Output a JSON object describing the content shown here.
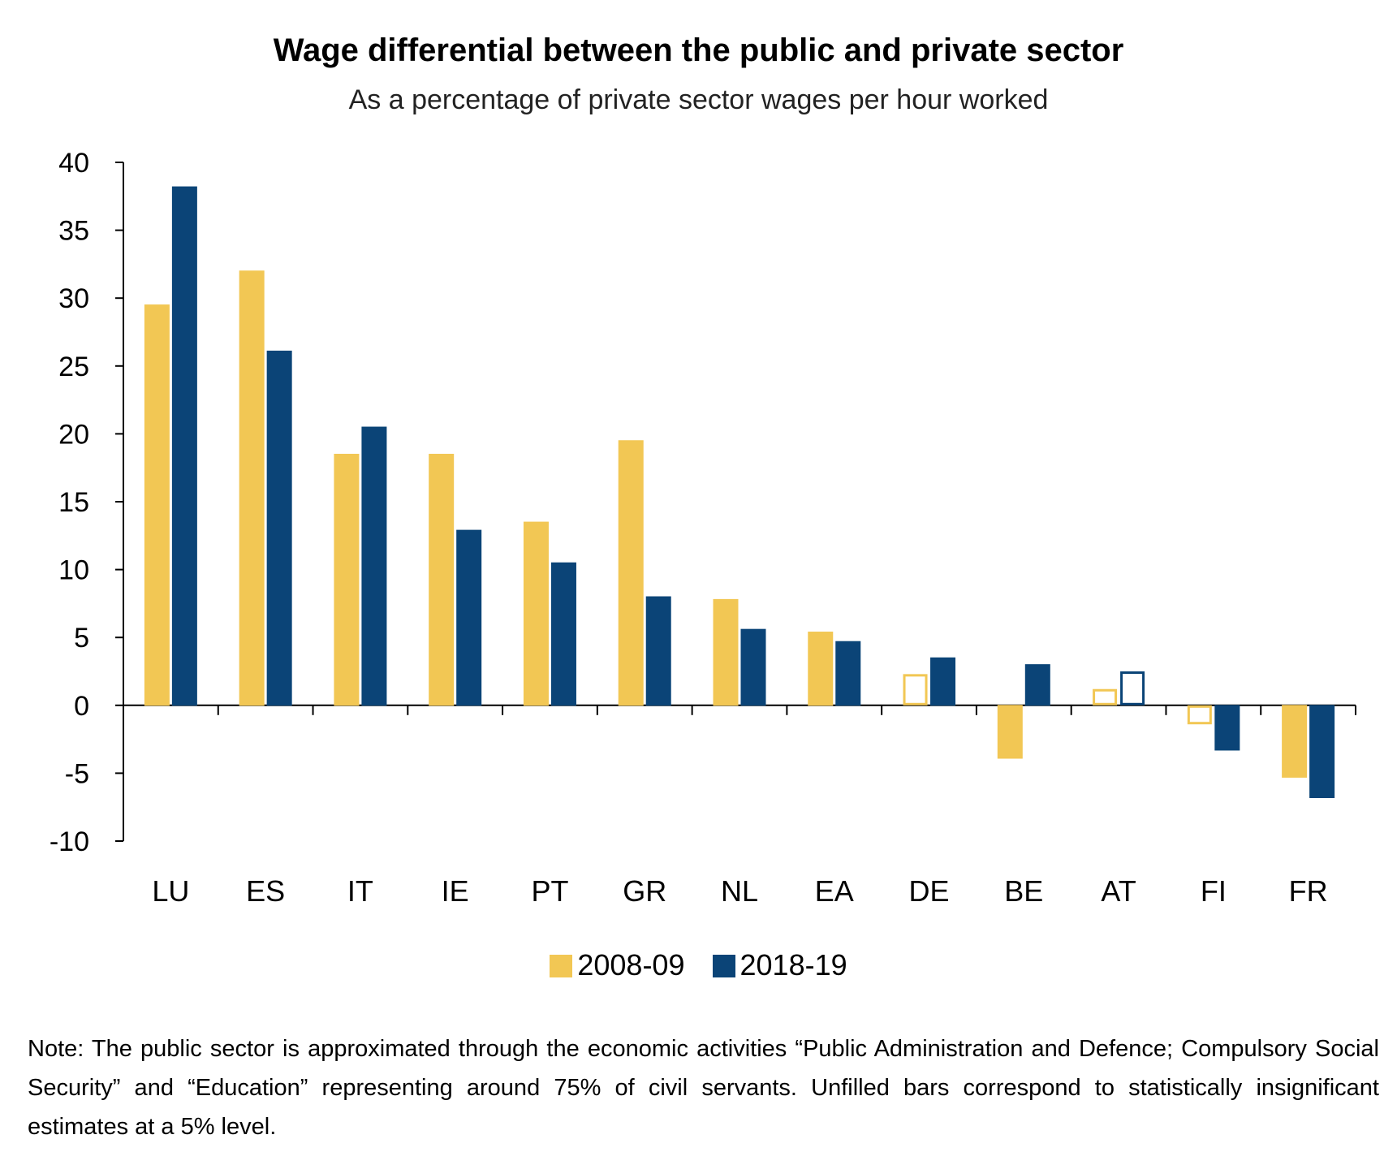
{
  "chart_data": {
    "type": "bar",
    "title": "Wage differential between the public and private sector",
    "subtitle": "As a percentage of private sector wages per hour worked",
    "categories": [
      "LU",
      "ES",
      "IT",
      "IE",
      "PT",
      "GR",
      "NL",
      "EA",
      "DE",
      "BE",
      "AT",
      "FI",
      "FR"
    ],
    "series": [
      {
        "name": "2008-09",
        "color": "#F2C754",
        "values": [
          29.5,
          32.0,
          18.5,
          18.5,
          13.5,
          19.5,
          7.8,
          5.4,
          2.3,
          -3.9,
          1.2,
          -1.4,
          -5.3
        ],
        "significant": [
          true,
          true,
          true,
          true,
          true,
          true,
          true,
          true,
          false,
          true,
          false,
          false,
          true
        ]
      },
      {
        "name": "2018-19",
        "color": "#0B4477",
        "values": [
          38.2,
          26.1,
          20.5,
          12.9,
          10.5,
          8.0,
          5.6,
          4.7,
          3.5,
          3.0,
          2.5,
          -3.3,
          -6.8
        ],
        "significant": [
          true,
          true,
          true,
          true,
          true,
          true,
          true,
          true,
          true,
          true,
          false,
          true,
          true
        ]
      }
    ],
    "yticks": [
      40,
      35,
      30,
      25,
      20,
      15,
      10,
      5,
      0,
      -5,
      -10
    ],
    "ylim": [
      -10,
      40
    ],
    "grid": false,
    "legend_position": "bottom"
  },
  "note": "Note: The public sector is approximated through the economic activities “Public Administration and Defence; Compulsory Social Security” and “Education” representing around 75% of civil servants. Unfilled bars correspond to statistically insignificant estimates at a 5% level."
}
